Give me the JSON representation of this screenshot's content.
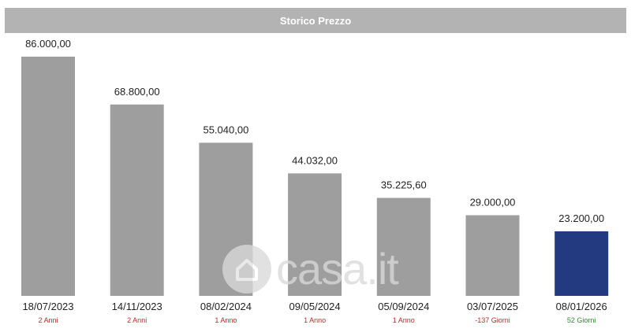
{
  "header": {
    "title": "Storico Prezzo"
  },
  "watermark": {
    "text": "casa.it",
    "icon": "home-icon"
  },
  "colors": {
    "bar": "#9e9e9e",
    "bar_highlight": "#233a80",
    "delta_red": "#c62828",
    "delta_green": "#2e8b2e"
  },
  "chart_data": {
    "type": "bar",
    "title": "Storico Prezzo",
    "ylim": [
      0,
      94000
    ],
    "grid": false,
    "categories": [
      "18/07/2023",
      "14/11/2023",
      "08/02/2024",
      "09/05/2024",
      "05/09/2024",
      "03/07/2025",
      "08/01/2026"
    ],
    "values": [
      86000,
      68800,
      55040,
      44032,
      35225.6,
      29000,
      23200
    ],
    "value_labels": [
      "86.000,00",
      "68.800,00",
      "55.040,00",
      "44.032,00",
      "35.225,60",
      "29.000,00",
      "23.200,00"
    ],
    "durations": [
      "2 Anni",
      "2 Anni",
      "1 Anno",
      "1 Anno",
      "1 Anno",
      "-137 Giorni",
      "52 Giorni"
    ],
    "duration_status": [
      "red",
      "red",
      "red",
      "red",
      "red",
      "red",
      "green"
    ],
    "highlight_index": 6
  }
}
